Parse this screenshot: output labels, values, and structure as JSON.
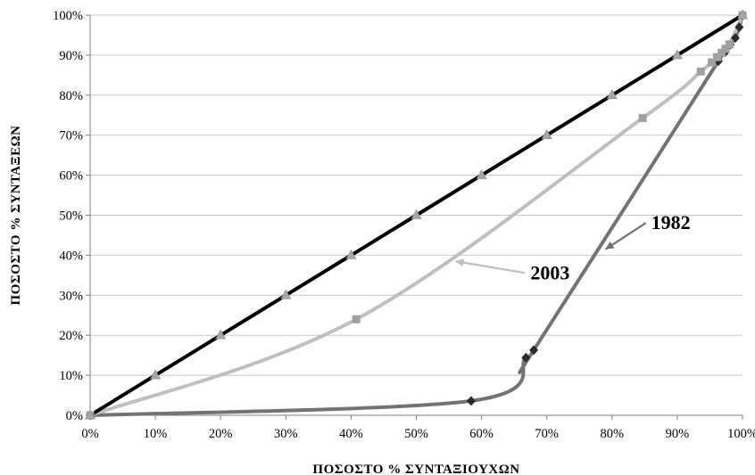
{
  "chart_data": {
    "type": "line",
    "xlabel": "ΠΟΣΟΣΤΟ % ΣΥΝΤΑΞΙΟΥΧΩΝ",
    "ylabel": "ΠΟΣΟΣΤΟ % ΣΥΝΤΑΞΕΩΝ",
    "xlim": [
      0,
      100
    ],
    "ylim": [
      0,
      100
    ],
    "x_ticks": [
      "0%",
      "10%",
      "20%",
      "30%",
      "40%",
      "50%",
      "60%",
      "70%",
      "80%",
      "90%",
      "100%"
    ],
    "y_ticks": [
      "0%",
      "10%",
      "20%",
      "30%",
      "40%",
      "50%",
      "60%",
      "70%",
      "80%",
      "90%",
      "100%"
    ],
    "grid": "horizontal",
    "series": [
      {
        "key": "equality",
        "color": "#000000",
        "marker": "triangle",
        "marker_color": "#a6a6a6",
        "x": [
          0,
          10,
          20,
          30,
          40,
          50,
          60,
          70,
          80,
          90,
          100
        ],
        "y": [
          0,
          10,
          20,
          30,
          40,
          50,
          60,
          70,
          80,
          90,
          100
        ]
      },
      {
        "name": "2003",
        "color": "#bfbfbf",
        "marker": "square",
        "marker_color": "#a0a0a0",
        "x": [
          0,
          40.8,
          84.7,
          93.6,
          95.3,
          96.1,
          96.8,
          97.4,
          98.0,
          100
        ],
        "y": [
          0,
          24.0,
          74.3,
          85.9,
          88.2,
          89.5,
          90.6,
          91.6,
          92.7,
          100
        ]
      },
      {
        "name": "1982",
        "color": "#737373",
        "marker": "diamond",
        "marker_color": "#2a2a2a",
        "x": [
          0,
          58.4,
          66.8,
          68.0,
          96.3,
          97.3,
          98.1,
          98.9,
          99.5,
          100
        ],
        "y": [
          0,
          3.6,
          14.4,
          16.3,
          88.5,
          90.7,
          92.6,
          94.3,
          97.0,
          100
        ]
      }
    ],
    "annotations": [
      {
        "text": "2003",
        "series": "2003",
        "arrow_to": [
          56.0,
          38.5
        ],
        "label_at": [
          67.5,
          34.0
        ]
      },
      {
        "text": "1982",
        "series": "1982",
        "arrow_to": [
          79.0,
          41.5
        ],
        "label_at": [
          86.0,
          46.5
        ]
      }
    ]
  }
}
